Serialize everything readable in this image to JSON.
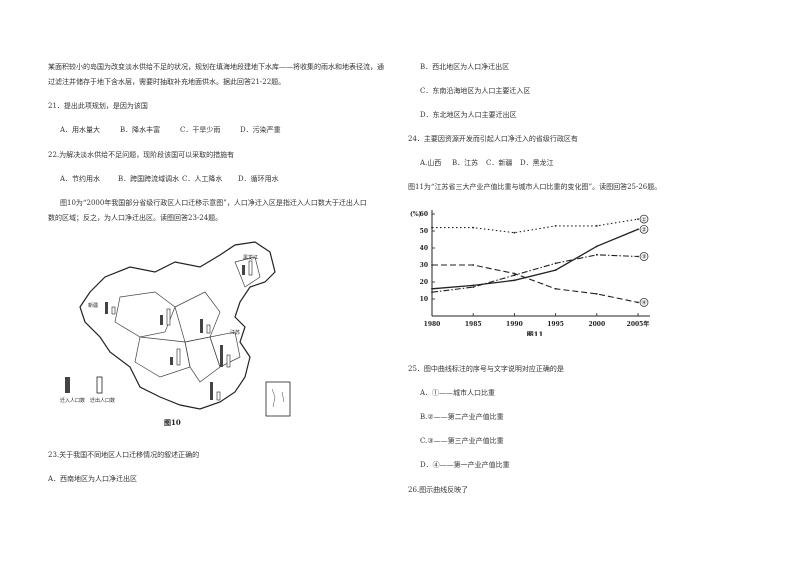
{
  "left": {
    "intro": [
      "某面积较小的岛国为改变淡水供给不足的状况，规划在填海地段建地下水库——将收集的雨水和地表径流，通",
      "过滤注并储存于地下含水层，需要时抽取补充地面供水。据此回答21-22题。"
    ],
    "q21": {
      "stem": "21．提出此项规划，是因为该国",
      "options": [
        "A．用水量大",
        "B．降水丰富",
        "C．干旱少雨",
        "D．污染严重"
      ]
    },
    "q22": {
      "stem": "22.为解决淡水供给不足问题，现阶段该国可以采取的措施有",
      "options": [
        "A．节约用水",
        "B．跨国跨流域调水",
        "C．人工降水",
        "D．循环用水"
      ]
    },
    "fig10_intro": [
      "图10为“2000年我国部分省级行政区人口迁移示意图”，人口净迁入区是指迁入人口数大于迁出人口",
      "数的区域；反之，为人口净迁出区。读图回答23-24题。"
    ],
    "map": {
      "caption": "图10",
      "legend": [
        "迁入人口数",
        "迁出人口数"
      ],
      "labels": [
        "新疆",
        "黑龙江",
        "江苏"
      ]
    },
    "q23": {
      "stem": "23.关于我国不同地区人口迁移情况的叙述正确的",
      "options": [
        "A．西南地区为人口净迁出区"
      ]
    }
  },
  "right": {
    "q23_cont": [
      "B．西北地区为人口净迁出区",
      "C．东南沿海地区为人口主要迁入区",
      "D．东北地区为人口主要迁出区"
    ],
    "q24": {
      "stem": "24．主要因资源开发而引起人口净迁入的省级行政区有",
      "options": [
        "A.山西",
        "B．江苏",
        "C．新疆",
        "D．黑龙江"
      ]
    },
    "fig11_intro": "图11为“江苏省三大产业产值比重与城市人口比重的变化图”。读图回答25-26题。",
    "q25": {
      "stem": "25．图中曲线标注的序号与文字说明对应正确的是",
      "options": [
        "A．①——城市人口比重",
        "B.②——第二产业产值比重",
        "C.③——第三产业产值比重",
        "D．④——第一产业产值比重"
      ]
    },
    "q26": {
      "stem": "26.图示曲线反映了"
    }
  },
  "chart_data": {
    "type": "line",
    "title": "图11",
    "ylabel": "(%)",
    "x": [
      1980,
      1985,
      1990,
      1995,
      2000,
      2005
    ],
    "xlabel_suffix": "年",
    "ylim": [
      0,
      60
    ],
    "yticks": [
      0,
      10,
      20,
      30,
      40,
      50,
      60
    ],
    "series": [
      {
        "name": "①",
        "style": "dotted",
        "values": [
          52,
          52,
          49,
          53,
          53,
          57
        ]
      },
      {
        "name": "②",
        "style": "solid",
        "values": [
          16,
          18,
          21,
          27,
          41,
          51
        ]
      },
      {
        "name": "③",
        "style": "dashdot",
        "values": [
          14,
          17,
          24,
          31,
          36,
          35
        ]
      },
      {
        "name": "④",
        "style": "dashed",
        "values": [
          30,
          30,
          25,
          16,
          13,
          8
        ]
      }
    ],
    "grid": false
  }
}
